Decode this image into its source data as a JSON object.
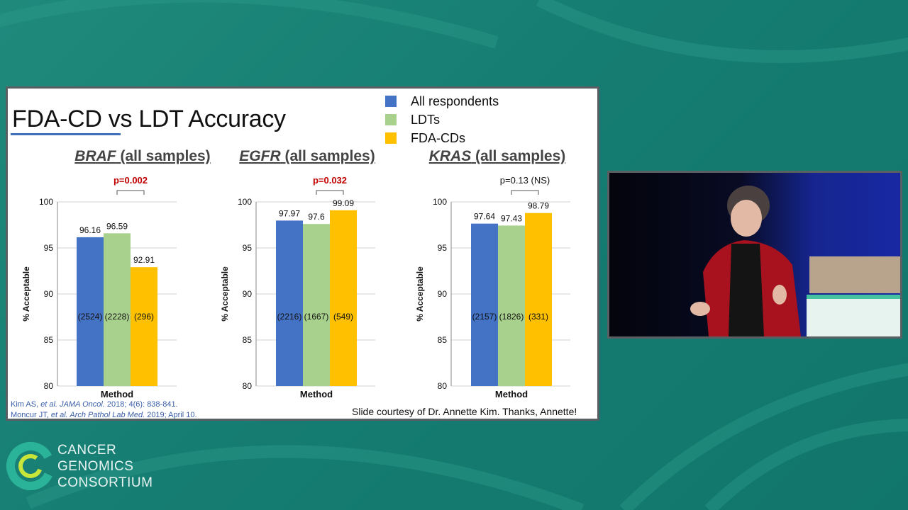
{
  "slide": {
    "title": "FDA-CD vs LDT Accuracy",
    "legend": [
      {
        "label": "All respondents",
        "color": "#4472c4"
      },
      {
        "label": "LDTs",
        "color": "#a9d18e"
      },
      {
        "label": "FDA-CDs",
        "color": "#ffc000"
      }
    ],
    "citations": {
      "line1": {
        "pre": "Kim AS, ",
        "em": "et al. JAMA Oncol.",
        "post": " 2018; 4(6): 838-841."
      },
      "line2": {
        "pre": "Moncur JT, ",
        "em": "et al. Arch Pathol Lab Med.",
        "post": " 2019; April 10."
      }
    },
    "courtesy": "Slide courtesy of Dr. Annette Kim. Thanks, Annette!"
  },
  "chart_data": [
    {
      "type": "bar",
      "title_gene": "BRAF",
      "title_rest": " (all samples)",
      "xlabel": "Method",
      "ylabel": "% Acceptable",
      "ylim": [
        80,
        100
      ],
      "yticks": [
        80,
        85,
        90,
        95,
        100
      ],
      "series": [
        {
          "name": "All respondents",
          "value": 96.16,
          "label": "96.16",
          "n": "(2524)",
          "color": "#4472c4"
        },
        {
          "name": "LDTs",
          "value": 96.59,
          "label": "96.59",
          "n": "(2228)",
          "color": "#a9d18e"
        },
        {
          "name": "FDA-CDs",
          "value": 92.91,
          "label": "92.91",
          "n": "(296)",
          "color": "#ffc000"
        }
      ],
      "pvalue": "p=0.002",
      "pvalue_color": "#c00000",
      "pvalue_bold": true
    },
    {
      "type": "bar",
      "title_gene": "EGFR",
      "title_rest": " (all samples)",
      "xlabel": "Method",
      "ylabel": "% Acceptable",
      "ylim": [
        80,
        100
      ],
      "yticks": [
        80,
        85,
        90,
        95,
        100
      ],
      "series": [
        {
          "name": "All respondents",
          "value": 97.97,
          "label": "97.97",
          "n": "(2216)",
          "color": "#4472c4"
        },
        {
          "name": "LDTs",
          "value": 97.6,
          "label": "97.6",
          "n": "(1667)",
          "color": "#a9d18e"
        },
        {
          "name": "FDA-CDs",
          "value": 99.09,
          "label": "99.09",
          "n": "(549)",
          "color": "#ffc000"
        }
      ],
      "pvalue": "p=0.032",
      "pvalue_color": "#c00000",
      "pvalue_bold": true
    },
    {
      "type": "bar",
      "title_gene": "KRAS",
      "title_rest": " (all samples)",
      "xlabel": "Method",
      "ylabel": "% Acceptable",
      "ylim": [
        80,
        100
      ],
      "yticks": [
        80,
        85,
        90,
        95,
        100
      ],
      "series": [
        {
          "name": "All respondents",
          "value": 97.64,
          "label": "97.64",
          "n": "(2157)",
          "color": "#4472c4"
        },
        {
          "name": "LDTs",
          "value": 97.43,
          "label": "97.43",
          "n": "(1826)",
          "color": "#a9d18e"
        },
        {
          "name": "FDA-CDs",
          "value": 98.79,
          "label": "98.79",
          "n": "(331)",
          "color": "#ffc000"
        }
      ],
      "pvalue": "p=0.13 (NS)",
      "pvalue_color": "#111111",
      "pvalue_bold": false
    }
  ],
  "logo": {
    "line1": "CANCER",
    "line2": "GENOMICS",
    "line3": "CONSORTIUM",
    "color": "#2bb39a"
  }
}
